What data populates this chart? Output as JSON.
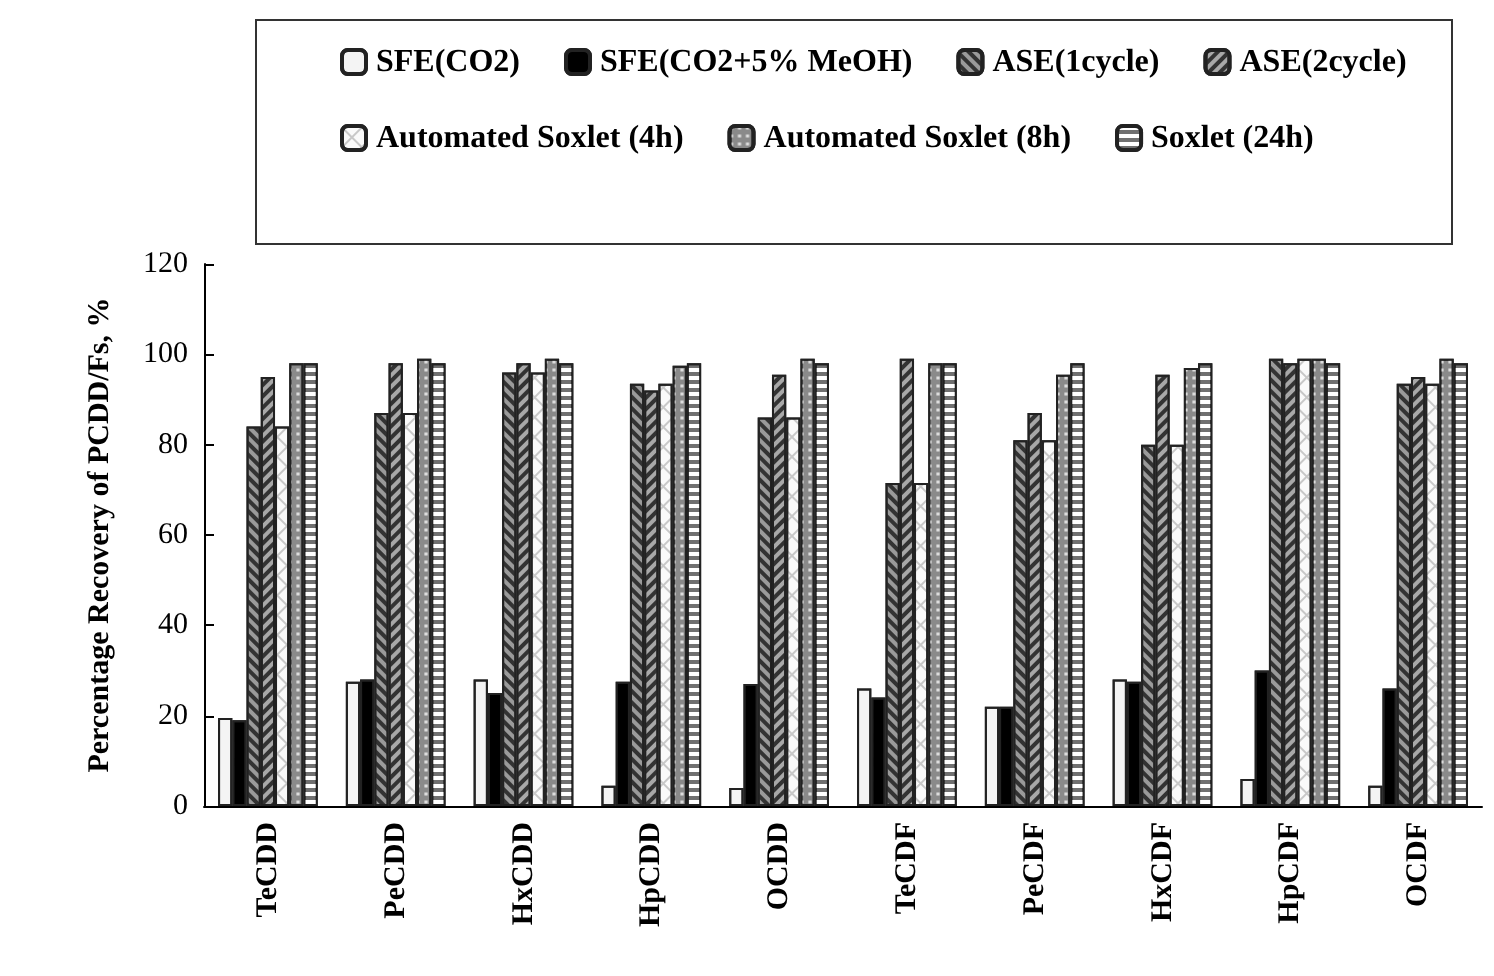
{
  "chart_data": {
    "type": "bar",
    "ylabel": "Percentage Recovery of PCDD/Fs, %",
    "categories": [
      "TeCDD",
      "PeCDD",
      "HxCDD",
      "HpCDD",
      "OCDD",
      "TeCDF",
      "PeCDF",
      "HxCDF",
      "HpCDF",
      "OCDF"
    ],
    "series": [
      {
        "name": "SFE(CO2)",
        "color": "#f4f4f4",
        "values": [
          19.5,
          27.5,
          28,
          4.5,
          4,
          26,
          22,
          28,
          6,
          4.5
        ]
      },
      {
        "name": "SFE(CO2+5% MeOH)",
        "color": "#000000",
        "values": [
          19,
          28,
          25,
          27.5,
          27,
          24,
          22,
          27.5,
          30,
          26
        ]
      },
      {
        "name": "ASE(1cycle)",
        "color": "#9a9a9a",
        "values": [
          84,
          87,
          96,
          93.5,
          86,
          71.5,
          81,
          80,
          99,
          93.5
        ]
      },
      {
        "name": "ASE(2cycle)",
        "color": "#a8a8a8",
        "values": [
          95,
          98,
          98,
          92,
          95.5,
          99,
          87,
          95.5,
          98,
          95
        ]
      },
      {
        "name": "Automated Soxlet (4h)",
        "color": "#fafafa",
        "values": [
          84,
          87,
          96,
          93.5,
          86,
          71.5,
          81,
          80,
          99,
          93.5
        ]
      },
      {
        "name": "Automated Soxlet (8h)",
        "color": "#8a8a8a",
        "values": [
          98,
          99,
          99,
          97.5,
          99,
          98,
          95.5,
          97,
          99,
          99
        ]
      },
      {
        "name": "Soxlet (24h)",
        "color": "#707070",
        "values": [
          98,
          98,
          98,
          98,
          98,
          98,
          98,
          98,
          98,
          98
        ]
      }
    ],
    "ylim": [
      0,
      120
    ],
    "yticks": [
      0,
      20,
      40,
      60,
      80,
      100,
      120
    ],
    "grid": false,
    "legend": "top"
  }
}
